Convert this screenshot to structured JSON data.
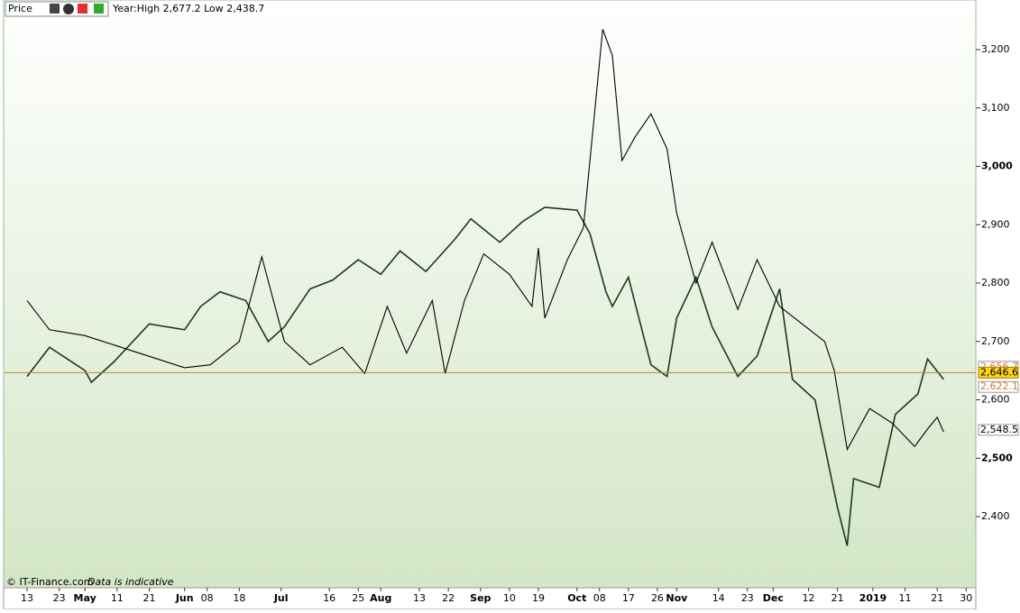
{
  "chart_data": {
    "type": "line",
    "header": {
      "name": "Price",
      "range": "Year:High 2,677.2 Low 2,438.7"
    },
    "footer": {
      "source": "© IT-Finance.com",
      "note": "Data is indicative"
    },
    "xlim": [
      -7,
      295
    ],
    "xticks": [
      {
        "value": 0,
        "label": "13"
      },
      {
        "value": 10,
        "label": "23"
      },
      {
        "value": 18,
        "label": "May"
      },
      {
        "value": 28,
        "label": "11"
      },
      {
        "value": 38,
        "label": "21"
      },
      {
        "value": 49,
        "label": "Jun"
      },
      {
        "value": 56,
        "label": "08"
      },
      {
        "value": 66,
        "label": "18"
      },
      {
        "value": 79,
        "label": "Jul"
      },
      {
        "value": 94,
        "label": "16"
      },
      {
        "value": 103,
        "label": "25"
      },
      {
        "value": 110,
        "label": "Aug"
      },
      {
        "value": 122,
        "label": "13"
      },
      {
        "value": 131,
        "label": "22"
      },
      {
        "value": 141,
        "label": "Sep"
      },
      {
        "value": 150,
        "label": "10"
      },
      {
        "value": 159,
        "label": "19"
      },
      {
        "value": 171,
        "label": "Oct"
      },
      {
        "value": 178,
        "label": "08"
      },
      {
        "value": 187,
        "label": "17"
      },
      {
        "value": 196,
        "label": "26"
      },
      {
        "value": 202,
        "label": "Nov"
      },
      {
        "value": 215,
        "label": "14"
      },
      {
        "value": 224,
        "label": "23"
      },
      {
        "value": 232,
        "label": "Dec"
      },
      {
        "value": 243,
        "label": "12"
      },
      {
        "value": 252,
        "label": "21"
      },
      {
        "value": 263,
        "label": "2019"
      },
      {
        "value": 273,
        "label": "11"
      },
      {
        "value": 283,
        "label": "21"
      },
      {
        "value": 292,
        "label": "30"
      }
    ],
    "ylim": [
      2278,
      3285
    ],
    "yticks": [
      {
        "value": 2400,
        "label": "2,400"
      },
      {
        "value": 2500,
        "label": "2,500"
      },
      {
        "value": 2600,
        "label": "2,600"
      },
      {
        "value": 2700,
        "label": "2,700"
      },
      {
        "value": 2800,
        "label": "2,800"
      },
      {
        "value": 2900,
        "label": "2,900"
      },
      {
        "value": 3000,
        "label": "3,000"
      },
      {
        "value": 3100,
        "label": "3,100"
      },
      {
        "value": 3200,
        "label": "3,200"
      }
    ],
    "series": [
      {
        "color": "#1a3a1a",
        "x": [
          0,
          7,
          18,
          20,
          27,
          38,
          49,
          54,
          60,
          68,
          75,
          80,
          88,
          95,
          103,
          110,
          116,
          124,
          133,
          138,
          147,
          154,
          161,
          171,
          175,
          180,
          182,
          187,
          194,
          199,
          202,
          208,
          213,
          221,
          227,
          234,
          238,
          245,
          252,
          255,
          257,
          265,
          270,
          277,
          280,
          285
        ],
        "values": [
          2640,
          2690,
          2650,
          2630,
          2665,
          2730,
          2720,
          2760,
          2785,
          2770,
          2700,
          2725,
          2790,
          2805,
          2840,
          2815,
          2855,
          2820,
          2875,
          2910,
          2870,
          2905,
          2930,
          2925,
          2885,
          2785,
          2760,
          2810,
          2660,
          2640,
          2740,
          2810,
          2725,
          2640,
          2675,
          2790,
          2635,
          2600,
          2415,
          2350,
          2465,
          2450,
          2575,
          2610,
          2670,
          2635
        ]
      },
      {
        "color": "#000000",
        "x": [
          0,
          7,
          18,
          49,
          57,
          66,
          73,
          80,
          88,
          98,
          105,
          112,
          118,
          126,
          130,
          136,
          142,
          150,
          157,
          159,
          161,
          168,
          173,
          179,
          182,
          185,
          189,
          194,
          199,
          202,
          208,
          213,
          221,
          227,
          234,
          241,
          248,
          251,
          255,
          262,
          269,
          276,
          280,
          283,
          285
        ],
        "values": [
          2770,
          2720,
          2710,
          2655,
          2660,
          2700,
          2845,
          2700,
          2660,
          2690,
          2645,
          2760,
          2680,
          2770,
          2645,
          2770,
          2850,
          2815,
          2760,
          2860,
          2740,
          2840,
          2895,
          3235,
          3190,
          3010,
          3050,
          3090,
          3030,
          2920,
          2800,
          2870,
          2755,
          2840,
          2760,
          2730,
          2700,
          2650,
          2515,
          2585,
          2560,
          2520,
          2550,
          2570,
          2545
        ]
      }
    ],
    "price_tags": [
      {
        "value": 2656.7,
        "label": "2,656.7"
      },
      {
        "value": 2646.6,
        "label": "2,646.6"
      },
      {
        "value": 2622.1,
        "label": "2,622.1"
      },
      {
        "value": 2548.5,
        "label": "2,548.5"
      }
    ]
  }
}
